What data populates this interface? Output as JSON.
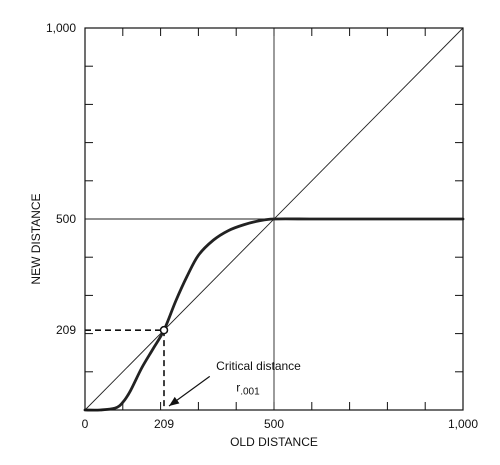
{
  "chart_data": {
    "type": "line",
    "title": "",
    "xlabel": "OLD DISTANCE",
    "ylabel": "NEW DISTANCE",
    "xlim": [
      0,
      1000
    ],
    "ylim": [
      0,
      1000
    ],
    "x_ticks": [
      {
        "value": 0,
        "label": "0"
      },
      {
        "value": 209,
        "label": "209"
      },
      {
        "value": 500,
        "label": "500"
      },
      {
        "value": 1000,
        "label": "1,000"
      }
    ],
    "y_ticks": [
      {
        "value": 209,
        "label": "209"
      },
      {
        "value": 500,
        "label": "500"
      },
      {
        "value": 1000,
        "label": "1,000"
      }
    ],
    "minor_tick_step": 100,
    "series": [
      {
        "role": "identity",
        "x": [
          0,
          1000
        ],
        "y": [
          0,
          1000
        ]
      },
      {
        "role": "transform",
        "x": [
          0,
          40,
          80,
          100,
          120,
          150,
          180,
          209,
          240,
          270,
          300,
          340,
          380,
          420,
          460,
          500,
          600,
          700,
          800,
          900,
          1000
        ],
        "y": [
          0,
          0,
          5,
          20,
          50,
          110,
          160,
          209,
          285,
          350,
          405,
          445,
          470,
          485,
          495,
          500,
          500,
          500,
          500,
          500,
          500
        ]
      }
    ],
    "reference_lines": {
      "vertical_at": 500,
      "horizontal_at": 500
    },
    "critical_point": {
      "x": 209,
      "y": 209
    },
    "annotations": [
      {
        "text": "Critical distance",
        "role": "title"
      },
      {
        "text": "r",
        "subscript": ".001",
        "role": "symbol"
      }
    ],
    "grid": false,
    "colors": {
      "line": "#222222",
      "axis": "#111111"
    }
  }
}
